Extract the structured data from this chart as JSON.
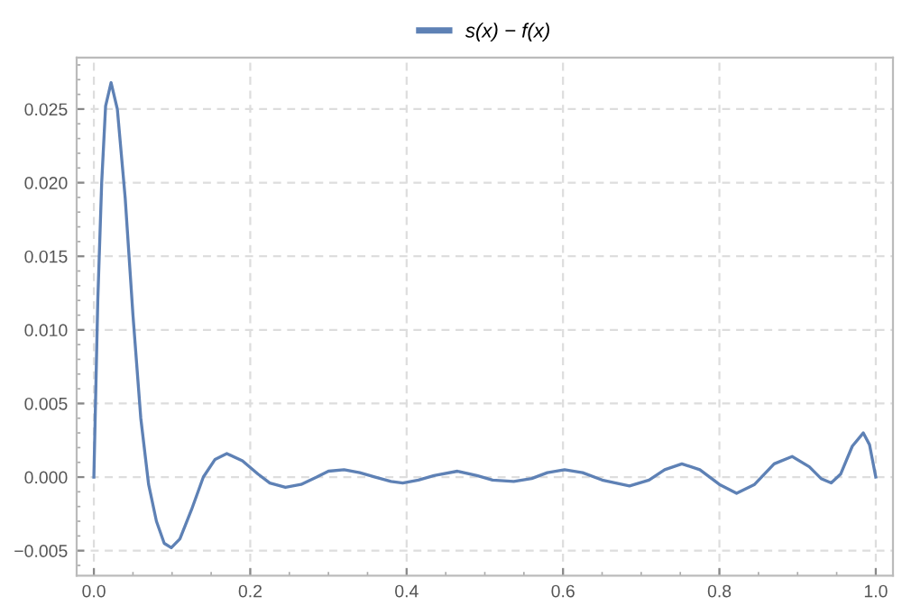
{
  "chart_data": {
    "type": "line",
    "series": [
      {
        "name": "s(x) − f(x)",
        "color": "#5e81b5",
        "x": [
          0,
          0.005,
          0.01,
          0.015,
          0.022,
          0.03,
          0.04,
          0.05,
          0.06,
          0.07,
          0.08,
          0.09,
          0.099,
          0.11,
          0.125,
          0.14,
          0.155,
          0.17,
          0.19,
          0.21,
          0.225,
          0.245,
          0.265,
          0.285,
          0.3,
          0.32,
          0.34,
          0.36,
          0.38,
          0.395,
          0.415,
          0.435,
          0.465,
          0.49,
          0.51,
          0.537,
          0.56,
          0.58,
          0.602,
          0.625,
          0.65,
          0.685,
          0.71,
          0.73,
          0.752,
          0.775,
          0.8,
          0.822,
          0.845,
          0.87,
          0.893,
          0.915,
          0.93,
          0.943,
          0.955,
          0.97,
          0.984,
          0.992,
          1.0
        ],
        "values": [
          0,
          0.012,
          0.02,
          0.0252,
          0.0268,
          0.025,
          0.019,
          0.011,
          0.004,
          -0.0005,
          -0.003,
          -0.0045,
          -0.0048,
          -0.0042,
          -0.0022,
          0,
          0.0012,
          0.0016,
          0.0011,
          0.0002,
          -0.0004,
          -0.0007,
          -0.0005,
          0,
          0.0004,
          0.0005,
          0.0003,
          0,
          -0.0003,
          -0.0004,
          -0.0002,
          0.0001,
          0.0004,
          0.0001,
          -0.0002,
          -0.0003,
          -0.0001,
          0.0003,
          0.0005,
          0.0003,
          -0.0002,
          -0.0006,
          -0.0002,
          0.0005,
          0.0009,
          0.0005,
          -0.0005,
          -0.0011,
          -0.0005,
          0.0009,
          0.0014,
          0.0007,
          -0.0001,
          -0.0004,
          0.0002,
          0.0021,
          0.003,
          0.0022,
          0
        ]
      }
    ],
    "xlim": [
      -0.022,
      1.022
    ],
    "ylim": [
      -0.0067,
      0.0285
    ],
    "xticks": [
      {
        "value": 0,
        "label": "0.0"
      },
      {
        "value": 0.2,
        "label": "0.2"
      },
      {
        "value": 0.4,
        "label": "0.4"
      },
      {
        "value": 0.6,
        "label": "0.6"
      },
      {
        "value": 0.8,
        "label": "0.8"
      },
      {
        "value": 1.0,
        "label": "1.0"
      }
    ],
    "yticks": [
      {
        "value": -0.005,
        "label": "−0.005"
      },
      {
        "value": 0,
        "label": "0.000"
      },
      {
        "value": 0.005,
        "label": "0.005"
      },
      {
        "value": 0.01,
        "label": "0.010"
      },
      {
        "value": 0.015,
        "label": "0.015"
      },
      {
        "value": 0.02,
        "label": "0.020"
      },
      {
        "value": 0.025,
        "label": "0.025"
      }
    ],
    "grid": true,
    "legend": "top",
    "line_style": "solid"
  }
}
